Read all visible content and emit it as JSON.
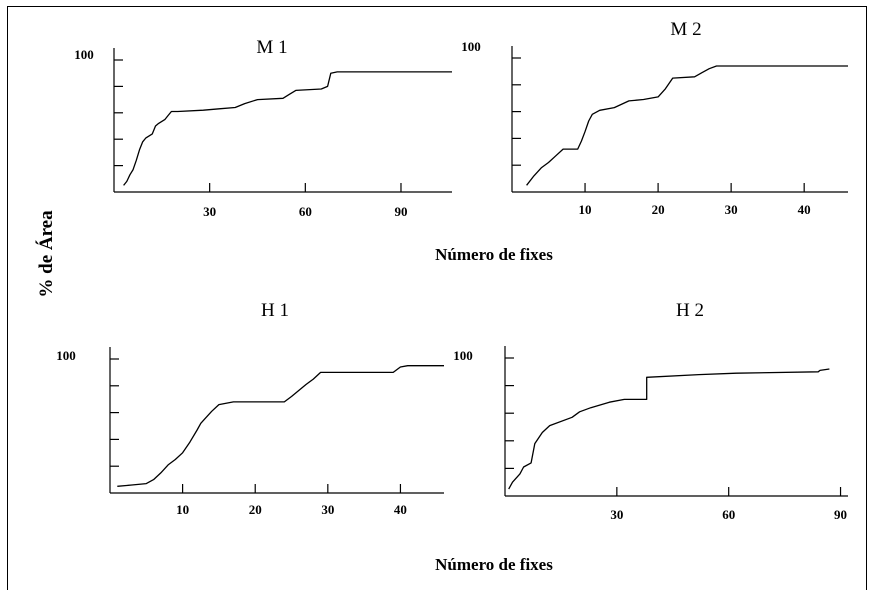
{
  "figure": {
    "ylabel": "% de Área",
    "xlabel_top": "Número de fixes",
    "xlabel_bottom": "Número de fixes"
  },
  "chart_data": [
    {
      "type": "line",
      "title": "M 1",
      "xlabel": "Número de fixes",
      "ylabel": "% de Área",
      "xticks": [
        30,
        60,
        90
      ],
      "xlim": [
        0,
        106
      ],
      "ylim": [
        0,
        100
      ],
      "yticks_labeled": [
        100
      ],
      "series": [
        {
          "x": [
            3,
            4,
            5,
            6,
            7,
            8,
            9,
            10,
            12,
            13,
            14,
            16,
            17,
            18,
            20,
            28,
            33,
            38,
            41,
            45,
            53,
            55,
            57,
            65,
            67,
            68,
            70,
            106
          ],
          "y": [
            5,
            8,
            13,
            17,
            24,
            32,
            38,
            41,
            44,
            50,
            52,
            55,
            58,
            61,
            61,
            62,
            63,
            64,
            67,
            70,
            71,
            74,
            77,
            78,
            80,
            90,
            91,
            91
          ]
        }
      ]
    },
    {
      "type": "line",
      "title": "M 2",
      "xlabel": "Número de fixes",
      "ylabel": "% de Área",
      "xticks": [
        10,
        20,
        30,
        40
      ],
      "xlim": [
        0,
        46
      ],
      "ylim": [
        0,
        100
      ],
      "yticks_labeled": [
        100
      ],
      "series": [
        {
          "x": [
            2,
            3,
            4,
            5,
            6,
            7,
            9,
            9.5,
            10,
            10.5,
            11,
            12,
            14,
            16,
            18,
            20,
            21,
            22,
            25,
            26,
            27,
            28,
            46
          ],
          "y": [
            5,
            12,
            18,
            22,
            27,
            32,
            32,
            38,
            45,
            53,
            58,
            61,
            63,
            68,
            69,
            71,
            77,
            85,
            86,
            89,
            92,
            94,
            94
          ]
        }
      ]
    },
    {
      "type": "line",
      "title": "H 1",
      "xlabel": "Número de fixes",
      "ylabel": "% de Área",
      "xticks": [
        10,
        20,
        30,
        40
      ],
      "xlim": [
        0,
        46
      ],
      "ylim": [
        0,
        100
      ],
      "yticks_labeled": [
        100
      ],
      "series": [
        {
          "x": [
            1,
            3,
            5,
            6,
            7,
            8,
            9,
            10,
            11,
            12,
            12.5,
            13,
            14,
            15,
            17,
            24,
            25,
            27,
            28,
            29,
            39,
            40,
            41,
            46
          ],
          "y": [
            5,
            6,
            7,
            10,
            15,
            21,
            25,
            30,
            38,
            47,
            52,
            55,
            61,
            66,
            68,
            68,
            72,
            81,
            85,
            90,
            90,
            94,
            95,
            95
          ]
        }
      ]
    },
    {
      "type": "line",
      "title": "H 2",
      "xlabel": "Número de fixes",
      "ylabel": "% de Área",
      "xticks": [
        30,
        60,
        90
      ],
      "xlim": [
        0,
        92
      ],
      "ylim": [
        0,
        100
      ],
      "yticks_labeled": [
        100
      ],
      "series": [
        {
          "x": [
            1,
            2,
            4,
            5,
            7,
            8,
            10,
            12,
            18,
            20,
            23,
            28,
            32,
            38,
            38,
            52,
            62,
            84,
            84.5,
            87
          ],
          "y": [
            5,
            10,
            16,
            21,
            24,
            38,
            46,
            51,
            57,
            61,
            64,
            68,
            70,
            70,
            86,
            88,
            89,
            90,
            91,
            92
          ]
        }
      ]
    }
  ]
}
